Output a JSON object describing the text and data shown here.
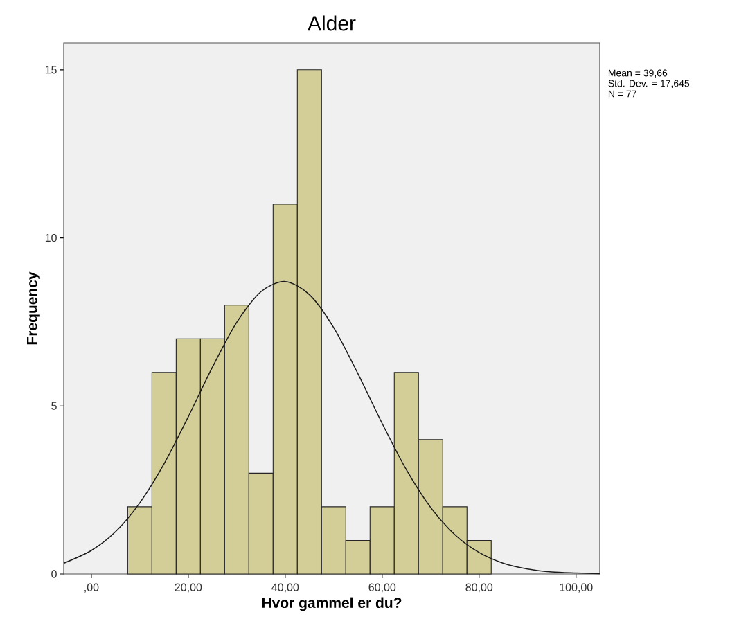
{
  "chart_data": {
    "type": "histogram",
    "title": "Alder",
    "xlabel": "Hvor gammel er du?",
    "ylabel": "Frequency",
    "annotations": [
      "Mean = 39,66",
      "Std. Dev. = 17,645",
      "N = 77"
    ],
    "xlim": [
      -5.7,
      104.9
    ],
    "ylim": [
      0,
      15.8
    ],
    "xticks": [
      {
        "value": 0,
        "label": ",00"
      },
      {
        "value": 20,
        "label": "20,00"
      },
      {
        "value": 40,
        "label": "40,00"
      },
      {
        "value": 60,
        "label": "60,00"
      },
      {
        "value": 80,
        "label": "80,00"
      },
      {
        "value": 100,
        "label": "100,00"
      }
    ],
    "yticks": [
      0,
      5,
      10,
      15
    ],
    "grid": false,
    "series": [
      {
        "color": "#d3ce98",
        "bins": [
          7.5,
          12.5,
          17.5,
          22.5,
          27.5,
          32.5,
          37.5,
          42.5,
          47.5,
          52.5,
          57.5,
          62.5,
          67.5,
          72.5,
          77.5,
          82.5
        ],
        "values": [
          2,
          6,
          7,
          7,
          8,
          3,
          11,
          15,
          2,
          1,
          2,
          6,
          4,
          2,
          1
        ]
      },
      {
        "type": "line",
        "color": "#1a1a1a",
        "x": [
          -5.7,
          0,
          5,
          10,
          15,
          20,
          25,
          30,
          35,
          40,
          45,
          50,
          55,
          60,
          65,
          70,
          75,
          80,
          85,
          90,
          95,
          100,
          104.9
        ],
        "values": [
          0.32,
          0.7,
          1.26,
          2.12,
          3.28,
          4.68,
          6.16,
          7.49,
          8.4,
          8.7,
          8.31,
          7.33,
          5.96,
          4.48,
          3.1,
          1.98,
          1.17,
          0.64,
          0.32,
          0.15,
          0.06,
          0.03,
          0.01
        ]
      }
    ]
  }
}
